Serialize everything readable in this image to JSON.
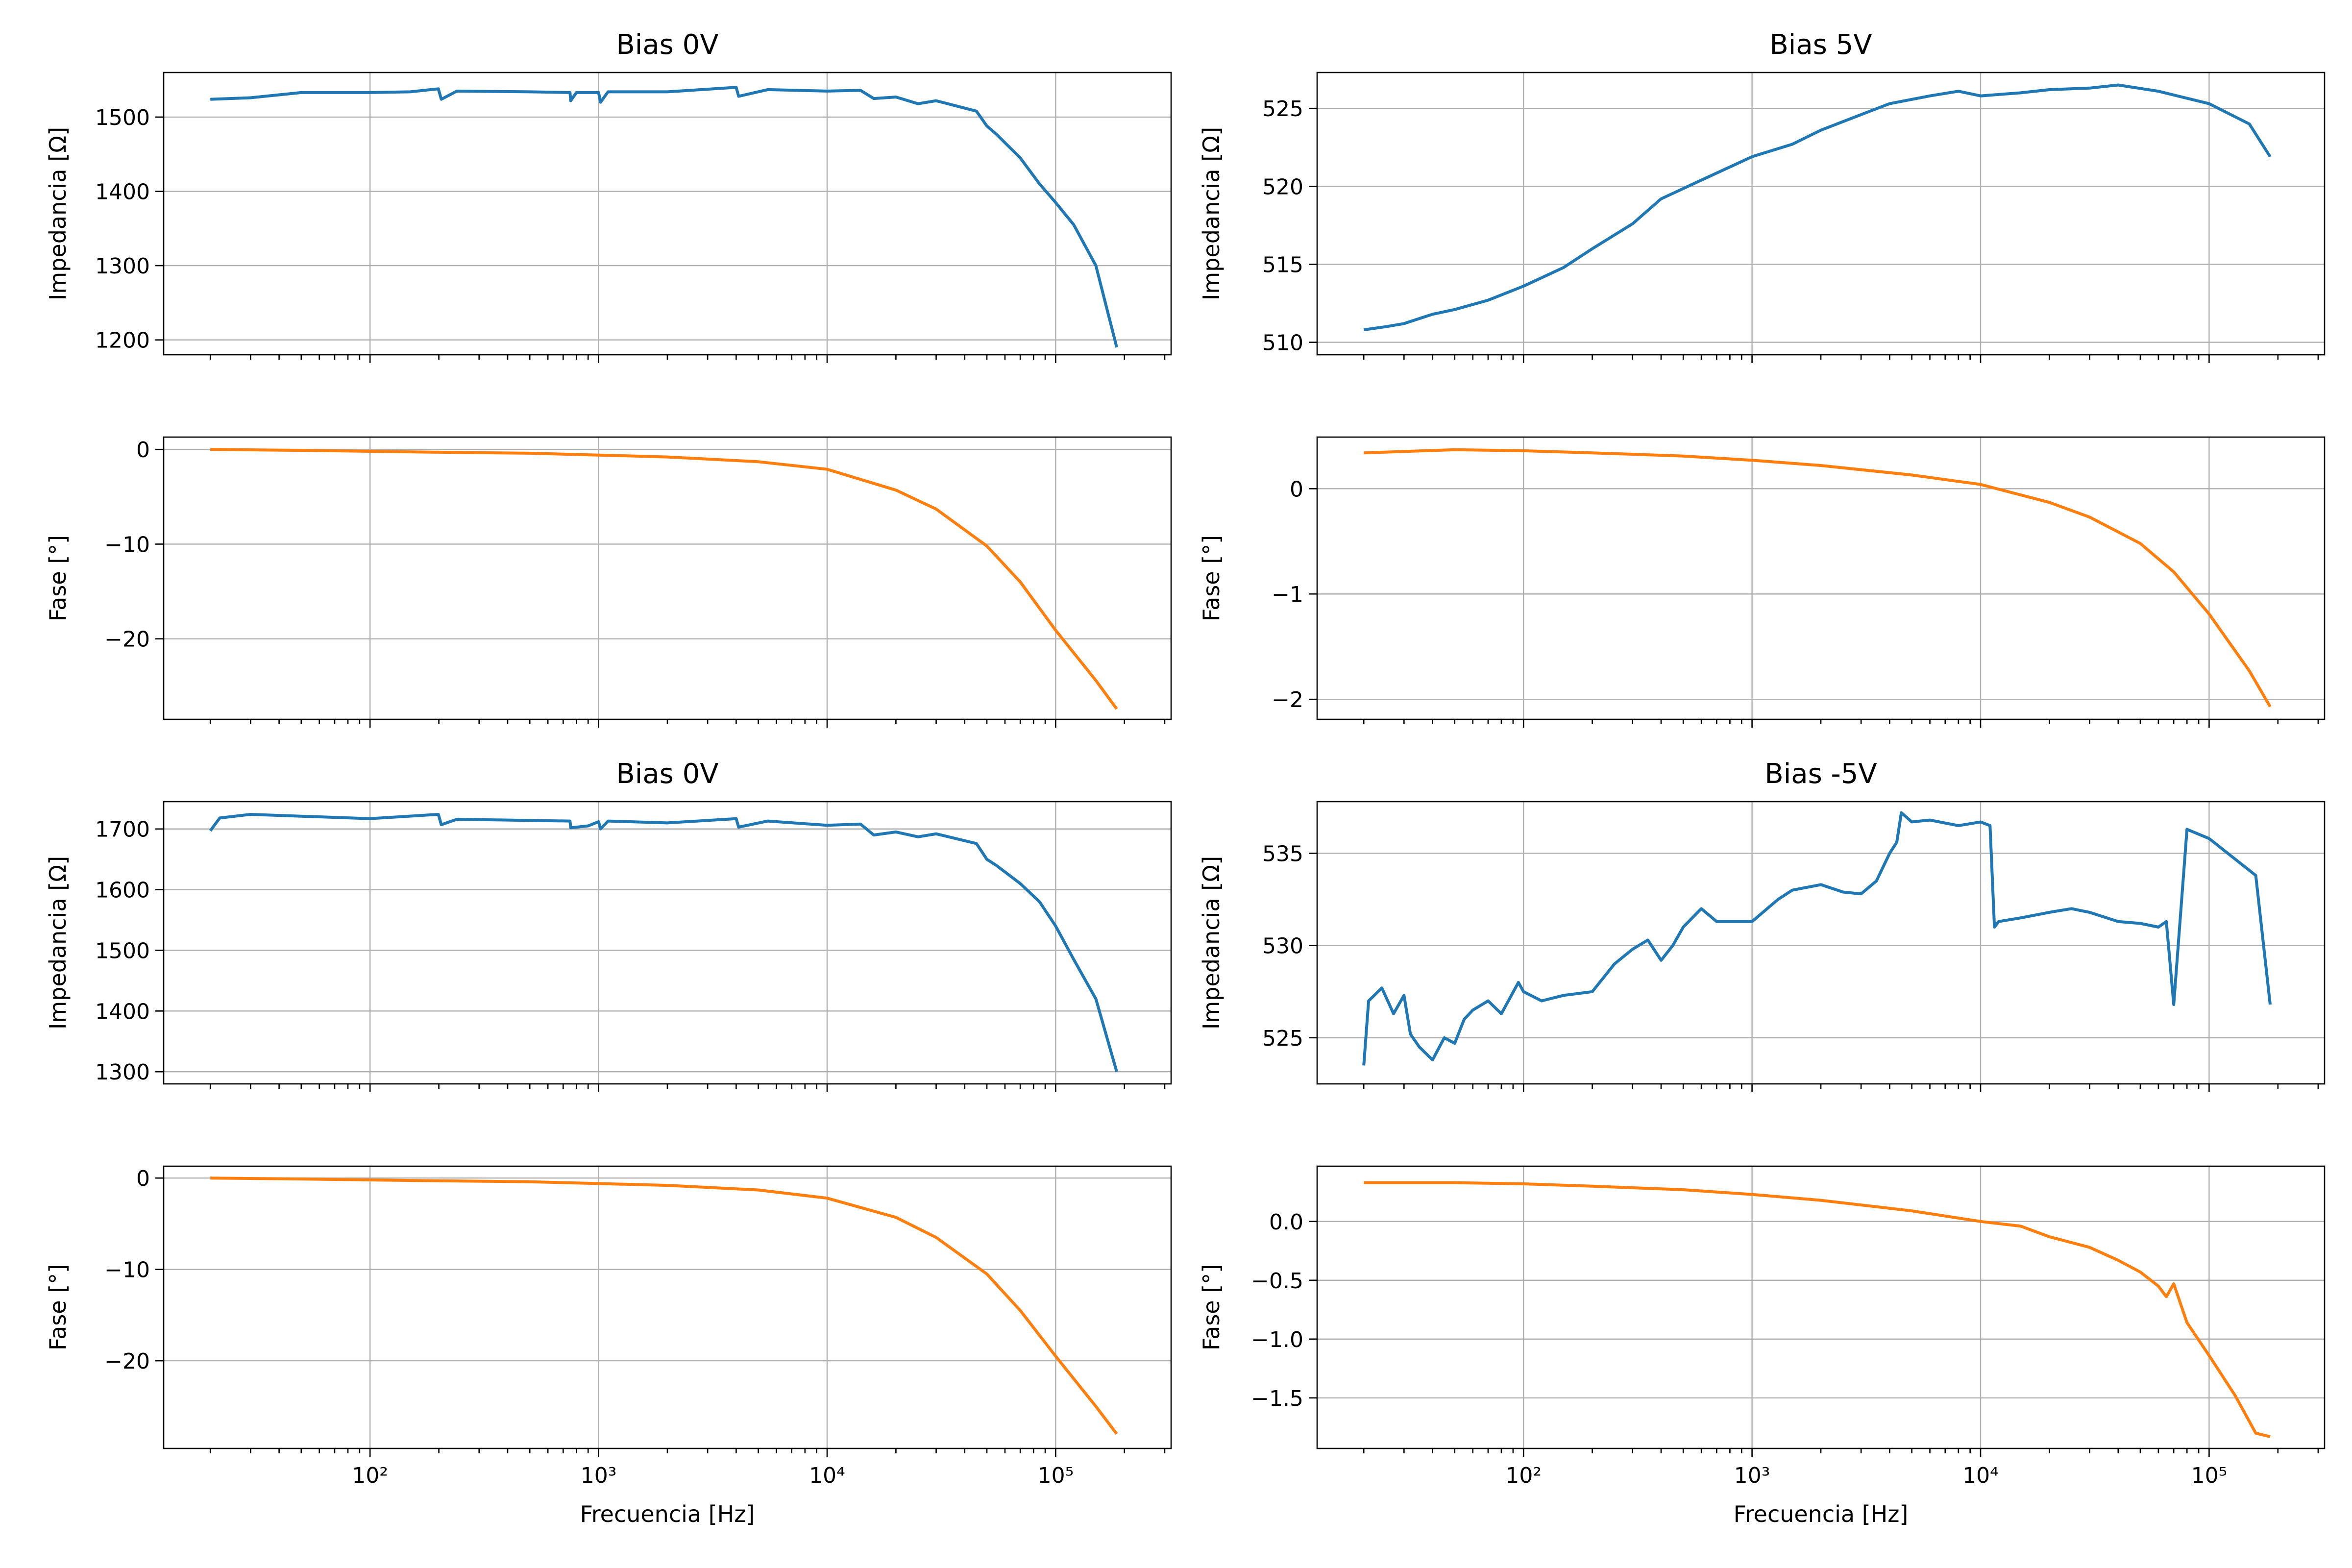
{
  "chart_data": [
    {
      "type": "line",
      "title": "Bias 0V",
      "ylabel": "Impedancia [Ω]",
      "xscale": "log",
      "xlim": [
        12.5,
        320000
      ],
      "ylim": [
        1180,
        1560
      ],
      "yticks": [
        1200,
        1300,
        1400,
        1500
      ],
      "ytick_labels": [
        "1200",
        "1300",
        "1400",
        "1500"
      ],
      "xtick_labels": [
        "",
        "",
        "",
        ""
      ],
      "xlabel": "",
      "grid": true,
      "color": "#1f77b4",
      "x": [
        20,
        30,
        50,
        100,
        150,
        199,
        205,
        240,
        500,
        750,
        755,
        800,
        1000,
        1020,
        1100,
        2000,
        4000,
        4100,
        5500,
        10000,
        14000,
        16000,
        20000,
        25000,
        30000,
        45000,
        50000,
        55000,
        70000,
        85000,
        100000,
        120000,
        150000,
        185000
      ],
      "y": [
        1524,
        1526,
        1533,
        1533,
        1534,
        1538,
        1524,
        1535,
        1534,
        1533,
        1522,
        1533,
        1533,
        1520,
        1534,
        1534,
        1540,
        1528,
        1537,
        1535,
        1536,
        1525,
        1527,
        1518,
        1522,
        1508,
        1488,
        1477,
        1445,
        1410,
        1385,
        1355,
        1300,
        1190
      ]
    },
    {
      "type": "line",
      "title": "",
      "ylabel": "Fase [°]",
      "xscale": "log",
      "xlim": [
        12.5,
        320000
      ],
      "ylim": [
        -28.5,
        1.3
      ],
      "yticks": [
        0,
        -10,
        -20
      ],
      "ytick_labels": [
        "0",
        "−10",
        "−20"
      ],
      "xtick_labels": [
        "",
        "",
        "",
        ""
      ],
      "xlabel": "",
      "grid": true,
      "color": "#ff7f0e",
      "x": [
        20,
        50,
        100,
        200,
        500,
        1000,
        2000,
        5000,
        10000,
        20000,
        30000,
        50000,
        70000,
        100000,
        150000,
        185000
      ],
      "y": [
        0,
        -0.1,
        -0.2,
        -0.3,
        -0.4,
        -0.6,
        -0.8,
        -1.3,
        -2.1,
        -4.3,
        -6.3,
        -10.2,
        -14.0,
        -19.1,
        -24.4,
        -27.4
      ]
    },
    {
      "type": "line",
      "title": "Bias 5V",
      "ylabel": "Impedancia [Ω]",
      "xscale": "log",
      "xlim": [
        12.5,
        320000
      ],
      "ylim": [
        509.2,
        527.3
      ],
      "yticks": [
        510,
        515,
        520,
        525
      ],
      "ytick_labels": [
        "510",
        "515",
        "520",
        "525"
      ],
      "xtick_labels": [
        "",
        "",
        "",
        ""
      ],
      "xlabel": "",
      "grid": true,
      "color": "#1f77b4",
      "x": [
        20,
        25,
        30,
        40,
        50,
        70,
        100,
        150,
        200,
        300,
        400,
        600,
        1000,
        1500,
        2000,
        3000,
        4000,
        6000,
        8000,
        10000,
        15000,
        20000,
        30000,
        40000,
        60000,
        100000,
        150000,
        185000
      ],
      "y": [
        510.8,
        511.0,
        511.2,
        511.8,
        512.1,
        512.7,
        513.6,
        514.8,
        516.0,
        517.6,
        519.2,
        520.4,
        521.9,
        522.7,
        523.6,
        524.6,
        525.3,
        525.8,
        526.1,
        525.8,
        526.0,
        526.2,
        526.3,
        526.5,
        526.1,
        525.3,
        524.0,
        521.9
      ]
    },
    {
      "type": "line",
      "title": "",
      "ylabel": "Fase [°]",
      "xscale": "log",
      "xlim": [
        12.5,
        320000
      ],
      "ylim": [
        -2.19,
        0.49
      ],
      "yticks": [
        0,
        -1,
        -2
      ],
      "ytick_labels": [
        "0",
        "−1",
        "−2"
      ],
      "xtick_labels": [
        "",
        "",
        "",
        ""
      ],
      "xlabel": "",
      "grid": true,
      "color": "#ff7f0e",
      "x": [
        20,
        50,
        100,
        200,
        500,
        1000,
        2000,
        5000,
        10000,
        20000,
        30000,
        50000,
        70000,
        100000,
        150000,
        185000
      ],
      "y": [
        0.34,
        0.37,
        0.36,
        0.34,
        0.31,
        0.27,
        0.22,
        0.13,
        0.04,
        -0.13,
        -0.27,
        -0.52,
        -0.79,
        -1.19,
        -1.73,
        -2.07
      ]
    },
    {
      "type": "line",
      "title": "Bias 0V",
      "ylabel": "Impedancia [Ω]",
      "xscale": "log",
      "xlim": [
        12.5,
        320000
      ],
      "ylim": [
        1280,
        1745
      ],
      "yticks": [
        1300,
        1400,
        1500,
        1600,
        1700
      ],
      "ytick_labels": [
        "1300",
        "1400",
        "1500",
        "1600",
        "1700"
      ],
      "xtick_labels": [
        "",
        "",
        "",
        ""
      ],
      "xlabel": "",
      "grid": true,
      "color": "#1f77b4",
      "x": [
        20,
        22,
        30,
        50,
        100,
        199,
        205,
        240,
        500,
        750,
        755,
        900,
        1000,
        1020,
        1100,
        2000,
        4000,
        4100,
        5500,
        10000,
        14000,
        16000,
        20000,
        25000,
        30000,
        45000,
        50000,
        55000,
        70000,
        85000,
        100000,
        120000,
        150000,
        185000
      ],
      "y": [
        1697,
        1718,
        1724,
        1721,
        1717,
        1724,
        1707,
        1716,
        1714,
        1713,
        1702,
        1705,
        1712,
        1700,
        1713,
        1710,
        1717,
        1703,
        1713,
        1706,
        1708,
        1690,
        1695,
        1687,
        1692,
        1676,
        1650,
        1640,
        1610,
        1580,
        1540,
        1485,
        1420,
        1300
      ]
    },
    {
      "type": "line",
      "title": "",
      "ylabel": "Fase [°]",
      "xscale": "log",
      "xlim": [
        12.5,
        320000
      ],
      "ylim": [
        -29.6,
        1.3
      ],
      "yticks": [
        0,
        -10,
        -20
      ],
      "ytick_labels": [
        "0",
        "−10",
        "−20"
      ],
      "xtick_labels": [
        "10²",
        "10³",
        "10⁴",
        "10⁵"
      ],
      "xlabel": "Frecuencia [Hz]",
      "grid": true,
      "color": "#ff7f0e",
      "x": [
        20,
        50,
        100,
        200,
        500,
        1000,
        2000,
        5000,
        10000,
        20000,
        30000,
        50000,
        70000,
        100000,
        150000,
        185000
      ],
      "y": [
        0,
        -0.1,
        -0.2,
        -0.3,
        -0.4,
        -0.6,
        -0.8,
        -1.3,
        -2.2,
        -4.3,
        -6.5,
        -10.5,
        -14.5,
        -19.5,
        -25.0,
        -28.0
      ]
    },
    {
      "type": "line",
      "title": "Bias -5V",
      "ylabel": "Impedancia [Ω]",
      "xscale": "log",
      "xlim": [
        12.5,
        320000
      ],
      "ylim": [
        522.5,
        537.8
      ],
      "yticks": [
        525,
        530,
        535
      ],
      "ytick_labels": [
        "525",
        "530",
        "535"
      ],
      "xtick_labels": [
        "",
        "",
        "",
        ""
      ],
      "xlabel": "",
      "grid": true,
      "color": "#1f77b4",
      "x": [
        20,
        21,
        24,
        27,
        30,
        32,
        35,
        40,
        45,
        50,
        55,
        60,
        70,
        80,
        95,
        100,
        120,
        150,
        200,
        250,
        300,
        350,
        400,
        450,
        500,
        600,
        700,
        1000,
        1300,
        1500,
        2000,
        2500,
        3000,
        3500,
        4000,
        4300,
        4500,
        5000,
        6000,
        8000,
        10000,
        11000,
        11500,
        12000,
        15000,
        20000,
        25000,
        30000,
        40000,
        50000,
        60000,
        65000,
        70000,
        80000,
        100000,
        160000,
        185000
      ],
      "y": [
        523.5,
        527.0,
        527.7,
        526.3,
        527.3,
        525.2,
        524.5,
        523.8,
        525.0,
        524.7,
        526.0,
        526.5,
        527.0,
        526.3,
        528.0,
        527.5,
        527.0,
        527.3,
        527.5,
        529.0,
        529.8,
        530.3,
        529.2,
        530.0,
        531.0,
        532.0,
        531.3,
        531.3,
        532.5,
        533.0,
        533.3,
        532.9,
        532.8,
        533.5,
        535.0,
        535.6,
        537.2,
        536.7,
        536.8,
        536.5,
        536.7,
        536.5,
        531.0,
        531.3,
        531.5,
        531.8,
        532.0,
        531.8,
        531.3,
        531.2,
        531.0,
        531.3,
        526.8,
        536.3,
        535.8,
        533.8,
        526.8
      ]
    },
    {
      "type": "line",
      "title": "",
      "ylabel": "Fase [°]",
      "xscale": "log",
      "xlim": [
        12.5,
        320000
      ],
      "ylim": [
        -1.93,
        0.47
      ],
      "yticks": [
        0.0,
        -0.5,
        -1.0,
        -1.5
      ],
      "ytick_labels": [
        "0.0",
        "−0.5",
        "−1.0",
        "−1.5"
      ],
      "xtick_labels": [
        "10²",
        "10³",
        "10⁴",
        "10⁵"
      ],
      "xlabel": "Frecuencia [Hz]",
      "grid": true,
      "color": "#ff7f0e",
      "x": [
        20,
        50,
        100,
        200,
        500,
        1000,
        2000,
        5000,
        10000,
        15000,
        20000,
        30000,
        40000,
        50000,
        60000,
        65000,
        70000,
        80000,
        100000,
        130000,
        160000,
        185000
      ],
      "y": [
        0.33,
        0.33,
        0.32,
        0.3,
        0.27,
        0.23,
        0.18,
        0.09,
        0.0,
        -0.04,
        -0.13,
        -0.22,
        -0.33,
        -0.43,
        -0.55,
        -0.64,
        -0.53,
        -0.86,
        -1.14,
        -1.48,
        -1.8,
        -1.83
      ]
    }
  ]
}
